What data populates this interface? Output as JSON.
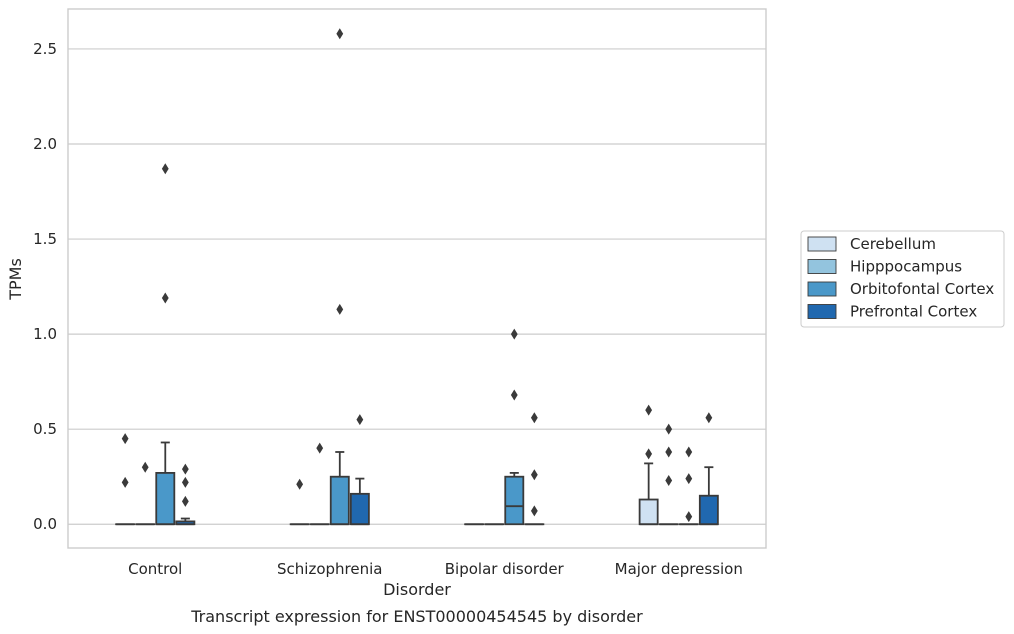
{
  "chart_data": {
    "type": "box",
    "caption": "Transcript expression for ENST00000454545 by disorder",
    "xlabel": "Disorder",
    "ylabel": "TPMs",
    "ylim": [
      -0.125,
      2.71
    ],
    "yticks": [
      0.0,
      0.5,
      1.0,
      1.5,
      2.0,
      2.5
    ],
    "ytick_labels": [
      "0.0",
      "0.5",
      "1.0",
      "1.5",
      "2.0",
      "2.5"
    ],
    "grid": "horizontal",
    "legend_position": "right",
    "categories": [
      "Control",
      "Schizophrenia",
      "Bipolar disorder",
      "Major depression"
    ],
    "series": [
      {
        "name": "Cerebellum",
        "color": "#cfe1f2",
        "boxes": [
          {
            "category": "Control",
            "q1": 0,
            "median": 0,
            "q3": 0,
            "whisker_low": 0,
            "whisker_high": 0,
            "outliers": [
              0.45,
              0.22
            ]
          },
          {
            "category": "Schizophrenia",
            "q1": 0,
            "median": 0,
            "q3": 0,
            "whisker_low": 0,
            "whisker_high": 0,
            "outliers": [
              0.21
            ]
          },
          {
            "category": "Bipolar disorder",
            "q1": 0,
            "median": 0,
            "q3": 0,
            "whisker_low": 0,
            "whisker_high": 0,
            "outliers": []
          },
          {
            "category": "Major depression",
            "q1": 0,
            "median": 0,
            "q3": 0.13,
            "whisker_low": 0,
            "whisker_high": 0.32,
            "outliers": [
              0.6,
              0.37
            ]
          }
        ]
      },
      {
        "name": "Hipppocampus",
        "color": "#93c4de",
        "boxes": [
          {
            "category": "Control",
            "q1": 0,
            "median": 0,
            "q3": 0,
            "whisker_low": 0,
            "whisker_high": 0,
            "outliers": [
              0.3
            ]
          },
          {
            "category": "Schizophrenia",
            "q1": 0,
            "median": 0,
            "q3": 0,
            "whisker_low": 0,
            "whisker_high": 0,
            "outliers": [
              0.4
            ]
          },
          {
            "category": "Bipolar disorder",
            "q1": 0,
            "median": 0,
            "q3": 0,
            "whisker_low": 0,
            "whisker_high": 0,
            "outliers": []
          },
          {
            "category": "Major depression",
            "q1": 0,
            "median": 0,
            "q3": 0,
            "whisker_low": 0,
            "whisker_high": 0,
            "outliers": [
              0.5,
              0.38,
              0.23
            ]
          }
        ]
      },
      {
        "name": "Orbitofontal Cortex",
        "color": "#4a98c9",
        "boxes": [
          {
            "category": "Control",
            "q1": 0,
            "median": 0,
            "q3": 0.27,
            "whisker_low": 0,
            "whisker_high": 0.43,
            "outliers": [
              1.87,
              1.19
            ]
          },
          {
            "category": "Schizophrenia",
            "q1": 0,
            "median": 0,
            "q3": 0.25,
            "whisker_low": 0,
            "whisker_high": 0.38,
            "outliers": [
              2.58,
              1.13
            ]
          },
          {
            "category": "Bipolar disorder",
            "q1": 0,
            "median": 0.095,
            "q3": 0.25,
            "whisker_low": 0,
            "whisker_high": 0.27,
            "outliers": [
              1.0,
              0.68
            ]
          },
          {
            "category": "Major depression",
            "q1": 0,
            "median": 0,
            "q3": 0,
            "whisker_low": 0,
            "whisker_high": 0,
            "outliers": [
              0.38,
              0.24,
              0.04
            ]
          }
        ]
      },
      {
        "name": "Prefrontal Cortex",
        "color": "#2068af",
        "boxes": [
          {
            "category": "Control",
            "q1": 0,
            "median": 0,
            "q3": 0.015,
            "whisker_low": 0,
            "whisker_high": 0.03,
            "outliers": [
              0.29,
              0.22,
              0.12
            ]
          },
          {
            "category": "Schizophrenia",
            "q1": 0,
            "median": 0,
            "q3": 0.16,
            "whisker_low": 0,
            "whisker_high": 0.24,
            "outliers": [
              0.55
            ]
          },
          {
            "category": "Bipolar disorder",
            "q1": 0,
            "median": 0,
            "q3": 0,
            "whisker_low": 0,
            "whisker_high": 0,
            "outliers": [
              0.56,
              0.26,
              0.07
            ]
          },
          {
            "category": "Major depression",
            "q1": 0,
            "median": 0,
            "q3": 0.15,
            "whisker_low": 0,
            "whisker_high": 0.3,
            "outliers": [
              0.56
            ]
          }
        ]
      }
    ]
  }
}
